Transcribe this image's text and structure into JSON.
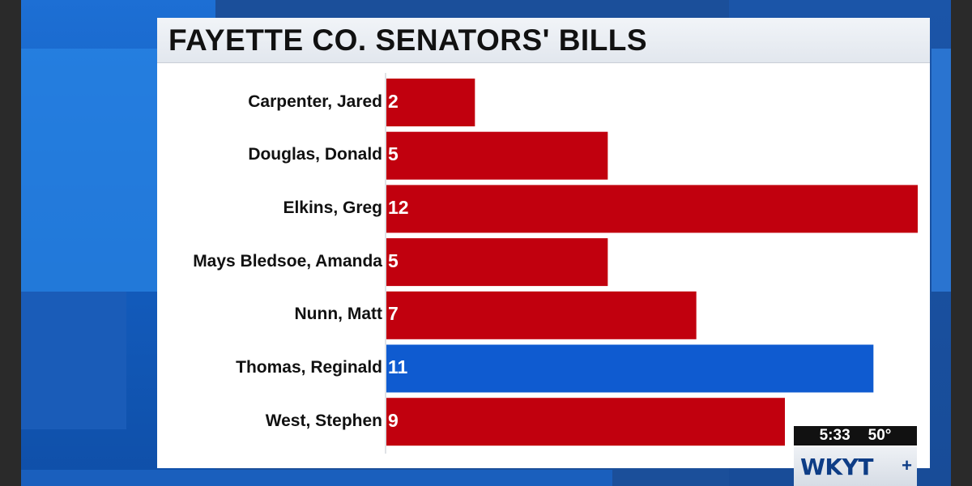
{
  "chart_data": {
    "type": "bar",
    "orientation": "horizontal",
    "title": "FAYETTE CO. SENATORS' BILLS",
    "xlabel": "",
    "ylabel": "",
    "categories": [
      "Carpenter, Jared",
      "Douglas, Donald",
      "Elkins, Greg",
      "Mays Bledsoe, Amanda",
      "Nunn, Matt",
      "Thomas, Reginald",
      "West, Stephen"
    ],
    "values": [
      2,
      5,
      12,
      5,
      7,
      11,
      9
    ],
    "bar_colors": [
      "#c1000e",
      "#c1000e",
      "#c1000e",
      "#c1000e",
      "#c1000e",
      "#0f5bd0",
      "#c1000e"
    ],
    "xlim": [
      0,
      12
    ],
    "grid": false,
    "legend": "none"
  },
  "overlay": {
    "time": "5:33",
    "temperature": "50°",
    "logo_text": "WKYT",
    "logo_plus": "+"
  },
  "colors": {
    "republican_red": "#c1000e",
    "democrat_blue": "#0f5bd0"
  }
}
